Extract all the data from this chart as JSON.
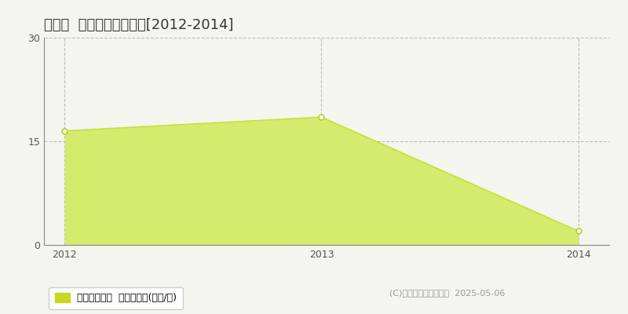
{
  "title": "東川町  収益物件価格推移[2012-2014]",
  "years": [
    2012,
    2013,
    2014
  ],
  "values": [
    16.5,
    18.5,
    2.0
  ],
  "ylim": [
    0,
    30
  ],
  "yticks": [
    0,
    15,
    30
  ],
  "xticks": [
    2012,
    2013,
    2014
  ],
  "line_color": "#c8e032",
  "fill_color": "#d4eb6e",
  "fill_alpha": 1.0,
  "marker_color": "white",
  "marker_edge_color": "#b8d020",
  "grid_color": "#bbbbbb",
  "grid_style": "--",
  "background_color": "#f5f5f0",
  "plot_bg_color": "#f5f5f0",
  "legend_label": "収益物件価格  平均坪単価(万円/坪)",
  "legend_color": "#c8d820",
  "copyright_text": "(C)土地価格ドットコム  2025-05-06",
  "title_fontsize": 13,
  "tick_fontsize": 9,
  "legend_fontsize": 9,
  "copyright_fontsize": 8,
  "spine_color": "#888888"
}
